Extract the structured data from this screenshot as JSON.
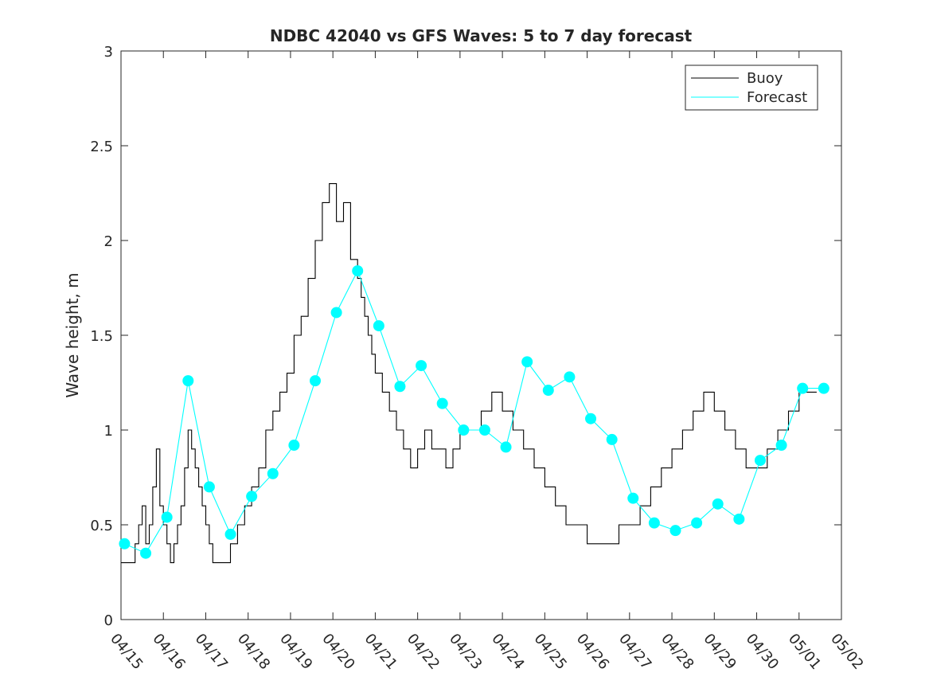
{
  "chart_data": {
    "type": "line",
    "title": "NDBC 42040 vs GFS Waves: 5 to 7 day forecast",
    "xlabel": "",
    "ylabel": "Wave height, m",
    "xlim": [
      "04/15",
      "05/02"
    ],
    "ylim": [
      0,
      3
    ],
    "yticks": [
      "0",
      "0.5",
      "1",
      "1.5",
      "2",
      "2.5",
      "3"
    ],
    "xticks": [
      "04/15",
      "04/16",
      "04/17",
      "04/18",
      "04/19",
      "04/20",
      "04/21",
      "04/22",
      "04/23",
      "04/24",
      "04/25",
      "04/26",
      "04/27",
      "04/28",
      "04/29",
      "04/30",
      "05/01",
      "05/02"
    ],
    "grid": false,
    "legend_position": "top-right",
    "legend": [
      {
        "label": "Buoy",
        "color": "#000000"
      },
      {
        "label": "Forecast",
        "color": "#00ffff"
      }
    ],
    "colors": {
      "buoy": "#000000",
      "forecast": "#00ffff"
    },
    "series": [
      {
        "name": "Buoy",
        "x": [
          "04/15 00:00",
          "04/15 06:00",
          "04/15 08:00",
          "04/15 10:00",
          "04/15 12:00",
          "04/15 14:00",
          "04/15 16:00",
          "04/15 18:00",
          "04/15 20:00",
          "04/15 22:00",
          "04/16 00:00",
          "04/16 02:00",
          "04/16 04:00",
          "04/16 06:00",
          "04/16 08:00",
          "04/16 10:00",
          "04/16 12:00",
          "04/16 14:00",
          "04/16 16:00",
          "04/16 18:00",
          "04/16 20:00",
          "04/16 22:00",
          "04/17 00:00",
          "04/17 02:00",
          "04/17 04:00",
          "04/17 06:00",
          "04/17 08:00",
          "04/17 10:00",
          "04/17 14:00",
          "04/17 18:00",
          "04/17 22:00",
          "04/18 02:00",
          "04/18 06:00",
          "04/18 10:00",
          "04/18 14:00",
          "04/18 18:00",
          "04/18 22:00",
          "04/19 02:00",
          "04/19 06:00",
          "04/19 10:00",
          "04/19 14:00",
          "04/19 18:00",
          "04/19 22:00",
          "04/20 02:00",
          "04/20 06:00",
          "04/20 10:00",
          "04/20 14:00",
          "04/20 16:00",
          "04/20 18:00",
          "04/20 20:00",
          "04/20 22:00",
          "04/21 00:00",
          "04/21 04:00",
          "04/21 08:00",
          "04/21 12:00",
          "04/21 16:00",
          "04/21 20:00",
          "04/22 00:00",
          "04/22 04:00",
          "04/22 08:00",
          "04/22 12:00",
          "04/22 16:00",
          "04/22 20:00",
          "04/23 00:00",
          "04/23 06:00",
          "04/23 12:00",
          "04/23 18:00",
          "04/24 00:00",
          "04/24 06:00",
          "04/24 12:00",
          "04/24 18:00",
          "04/25 00:00",
          "04/25 06:00",
          "04/25 12:00",
          "04/25 18:00",
          "04/26 00:00",
          "04/26 06:00",
          "04/26 12:00",
          "04/26 18:00",
          "04/27 00:00",
          "04/27 06:00",
          "04/27 12:00",
          "04/27 18:00",
          "04/28 00:00",
          "04/28 06:00",
          "04/28 12:00",
          "04/28 18:00",
          "04/29 00:00",
          "04/29 06:00",
          "04/29 12:00",
          "04/29 18:00",
          "04/30 00:00",
          "04/30 06:00",
          "04/30 12:00",
          "04/30 18:00",
          "05/01 00:00",
          "05/01 06:00",
          "05/01 10:00"
        ],
        "values": [
          0.3,
          0.3,
          0.4,
          0.5,
          0.6,
          0.4,
          0.5,
          0.7,
          0.9,
          0.6,
          0.5,
          0.4,
          0.3,
          0.4,
          0.5,
          0.6,
          0.8,
          1.0,
          0.9,
          0.8,
          0.7,
          0.6,
          0.5,
          0.4,
          0.3,
          0.3,
          0.3,
          0.3,
          0.4,
          0.5,
          0.6,
          0.7,
          0.8,
          1.0,
          1.1,
          1.2,
          1.3,
          1.5,
          1.6,
          1.8,
          2.0,
          2.2,
          2.3,
          2.1,
          2.2,
          1.9,
          1.8,
          1.7,
          1.6,
          1.5,
          1.4,
          1.3,
          1.2,
          1.1,
          1.0,
          0.9,
          0.8,
          0.9,
          1.0,
          0.9,
          0.9,
          0.8,
          0.9,
          1.0,
          1.0,
          1.1,
          1.2,
          1.1,
          1.0,
          0.9,
          0.8,
          0.7,
          0.6,
          0.5,
          0.5,
          0.4,
          0.4,
          0.4,
          0.5,
          0.5,
          0.6,
          0.7,
          0.8,
          0.9,
          1.0,
          1.1,
          1.2,
          1.1,
          1.0,
          0.9,
          0.8,
          0.8,
          0.9,
          1.0,
          1.1,
          1.2,
          1.2,
          1.2
        ]
      },
      {
        "name": "Forecast",
        "marker": "dot",
        "x": [
          "04/15 02:00",
          "04/15 14:00",
          "04/16 02:00",
          "04/16 14:00",
          "04/17 02:00",
          "04/17 14:00",
          "04/18 02:00",
          "04/18 14:00",
          "04/19 02:00",
          "04/19 14:00",
          "04/20 02:00",
          "04/20 14:00",
          "04/21 02:00",
          "04/21 14:00",
          "04/22 02:00",
          "04/22 14:00",
          "04/23 02:00",
          "04/23 14:00",
          "04/24 02:00",
          "04/24 14:00",
          "04/25 02:00",
          "04/25 14:00",
          "04/26 02:00",
          "04/26 14:00",
          "04/27 02:00",
          "04/27 14:00",
          "04/28 02:00",
          "04/28 14:00",
          "04/29 02:00",
          "04/29 14:00",
          "04/30 02:00",
          "04/30 14:00",
          "05/01 02:00",
          "05/01 14:00"
        ],
        "values": [
          0.4,
          0.35,
          0.54,
          1.26,
          0.7,
          0.45,
          0.65,
          0.77,
          0.92,
          1.26,
          1.62,
          1.84,
          1.55,
          1.23,
          1.34,
          1.14,
          1.0,
          1.0,
          0.91,
          1.36,
          1.21,
          1.28,
          1.06,
          0.95,
          0.64,
          0.51,
          0.47,
          0.51,
          0.61,
          0.53,
          0.84,
          0.92,
          1.22,
          1.22
        ]
      }
    ]
  }
}
